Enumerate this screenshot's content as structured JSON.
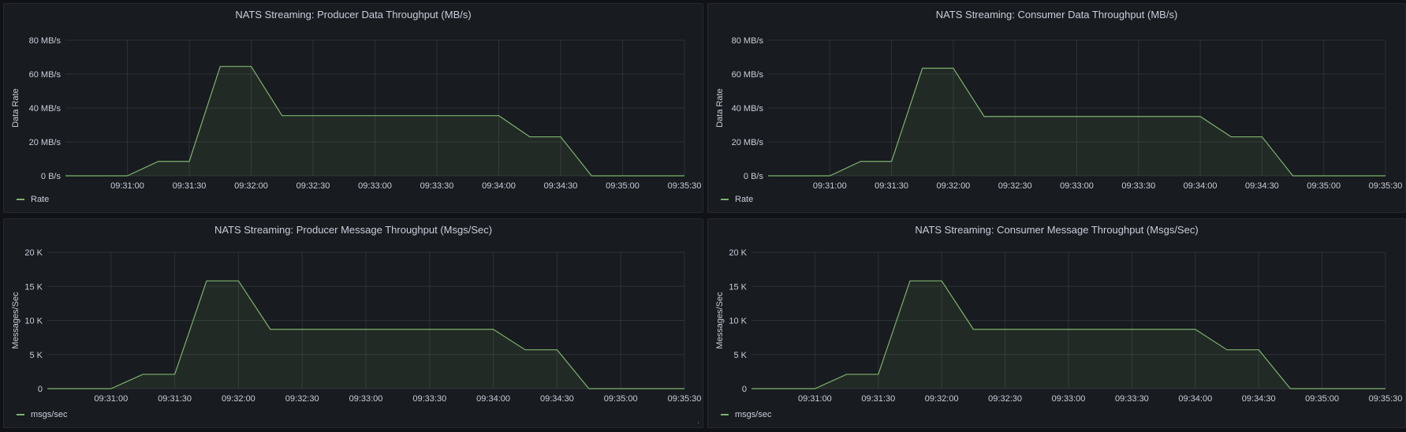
{
  "colors": {
    "series": "#7eb26d",
    "grid": "#2c3235",
    "panel_bg": "#181b1f"
  },
  "panels": [
    {
      "title": "NATS Streaming: Producer Data Throughput (MB/s)",
      "legend": "Rate",
      "chart_data": {
        "type": "area",
        "title": "NATS Streaming: Producer Data Throughput (MB/s)",
        "ylabel": "Data Rate",
        "ylim": [
          0,
          80
        ],
        "ytick_values": [
          0,
          20,
          40,
          60,
          80
        ],
        "ytick_labels": [
          "0 B/s",
          "20 MB/s",
          "40 MB/s",
          "60 MB/s",
          "80 MB/s"
        ],
        "xlim": [
          "09:30:30",
          "09:35:30"
        ],
        "xtick_labels": [
          "09:31:00",
          "09:31:30",
          "09:32:00",
          "09:32:30",
          "09:33:00",
          "09:33:30",
          "09:34:00",
          "09:34:30",
          "09:35:00",
          "09:35:30"
        ],
        "series": [
          {
            "name": "Rate",
            "x": [
              "09:30:30",
              "09:31:00",
              "09:31:15",
              "09:31:30",
              "09:31:45",
              "09:32:00",
              "09:32:15",
              "09:34:00",
              "09:34:15",
              "09:34:30",
              "09:34:45",
              "09:35:30"
            ],
            "y": [
              0,
              0,
              8.5,
              8.5,
              64.5,
              64.5,
              35.5,
              35.5,
              23,
              23,
              0,
              0
            ]
          }
        ]
      }
    },
    {
      "title": "NATS Streaming: Consumer Data Throughput (MB/s)",
      "legend": "Rate",
      "chart_data": {
        "type": "area",
        "title": "NATS Streaming: Consumer Data Throughput (MB/s)",
        "ylabel": "Data Rate",
        "ylim": [
          0,
          80
        ],
        "ytick_values": [
          0,
          20,
          40,
          60,
          80
        ],
        "ytick_labels": [
          "0 B/s",
          "20 MB/s",
          "40 MB/s",
          "60 MB/s",
          "80 MB/s"
        ],
        "xlim": [
          "09:30:30",
          "09:35:30"
        ],
        "xtick_labels": [
          "09:31:00",
          "09:31:30",
          "09:32:00",
          "09:32:30",
          "09:33:00",
          "09:33:30",
          "09:34:00",
          "09:34:30",
          "09:35:00",
          "09:35:30"
        ],
        "series": [
          {
            "name": "Rate",
            "x": [
              "09:30:30",
              "09:31:00",
              "09:31:15",
              "09:31:30",
              "09:31:45",
              "09:32:00",
              "09:32:15",
              "09:34:00",
              "09:34:15",
              "09:34:30",
              "09:34:45",
              "09:35:30"
            ],
            "y": [
              0,
              0,
              8.5,
              8.5,
              63.5,
              63.5,
              35,
              35,
              23,
              23,
              0,
              0
            ]
          }
        ]
      }
    },
    {
      "title": "NATS Streaming: Producer Message Throughput (Msgs/Sec)",
      "legend": "msgs/sec",
      "chart_data": {
        "type": "area",
        "title": "NATS Streaming: Producer Message Throughput (Msgs/Sec)",
        "ylabel": "Messages/Sec",
        "ylim": [
          0,
          20000
        ],
        "ytick_values": [
          0,
          5000,
          10000,
          15000,
          20000
        ],
        "ytick_labels": [
          "0",
          "5 K",
          "10 K",
          "15 K",
          "20 K"
        ],
        "xlim": [
          "09:30:30",
          "09:35:30"
        ],
        "xtick_labels": [
          "09:31:00",
          "09:31:30",
          "09:32:00",
          "09:32:30",
          "09:33:00",
          "09:33:30",
          "09:34:00",
          "09:34:30",
          "09:35:00",
          "09:35:30"
        ],
        "series": [
          {
            "name": "msgs/sec",
            "x": [
              "09:30:30",
              "09:31:00",
              "09:31:15",
              "09:31:30",
              "09:31:45",
              "09:32:00",
              "09:32:15",
              "09:34:00",
              "09:34:15",
              "09:34:30",
              "09:34:45",
              "09:35:30"
            ],
            "y": [
              0,
              0,
              2100,
              2100,
              15800,
              15800,
              8700,
              8700,
              5700,
              5700,
              0,
              0
            ]
          }
        ]
      }
    },
    {
      "title": "NATS Streaming: Consumer Message Throughput (Msgs/Sec)",
      "legend": "msgs/sec",
      "chart_data": {
        "type": "area",
        "title": "NATS Streaming: Consumer Message Throughput (Msgs/Sec)",
        "ylabel": "Messages/Sec",
        "ylim": [
          0,
          20000
        ],
        "ytick_values": [
          0,
          5000,
          10000,
          15000,
          20000
        ],
        "ytick_labels": [
          "0",
          "5 K",
          "10 K",
          "15 K",
          "20 K"
        ],
        "xlim": [
          "09:30:30",
          "09:35:30"
        ],
        "xtick_labels": [
          "09:31:00",
          "09:31:30",
          "09:32:00",
          "09:32:30",
          "09:33:00",
          "09:33:30",
          "09:34:00",
          "09:34:30",
          "09:35:00",
          "09:35:30"
        ],
        "series": [
          {
            "name": "msgs/sec",
            "x": [
              "09:30:30",
              "09:31:00",
              "09:31:15",
              "09:31:30",
              "09:31:45",
              "09:32:00",
              "09:32:15",
              "09:34:00",
              "09:34:15",
              "09:34:30",
              "09:34:45",
              "09:35:30"
            ],
            "y": [
              0,
              0,
              2100,
              2100,
              15800,
              15800,
              8700,
              8700,
              5700,
              5700,
              0,
              0
            ]
          }
        ]
      }
    }
  ]
}
